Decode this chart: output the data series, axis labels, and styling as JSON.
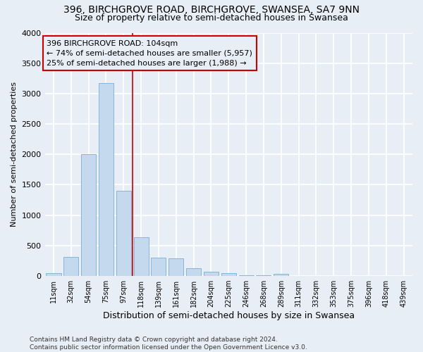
{
  "title1": "396, BIRCHGROVE ROAD, BIRCHGROVE, SWANSEA, SA7 9NN",
  "title2": "Size of property relative to semi-detached houses in Swansea",
  "xlabel": "Distribution of semi-detached houses by size in Swansea",
  "ylabel": "Number of semi-detached properties",
  "categories": [
    "11sqm",
    "32sqm",
    "54sqm",
    "75sqm",
    "97sqm",
    "118sqm",
    "139sqm",
    "161sqm",
    "182sqm",
    "204sqm",
    "225sqm",
    "246sqm",
    "268sqm",
    "289sqm",
    "311sqm",
    "332sqm",
    "353sqm",
    "375sqm",
    "396sqm",
    "418sqm",
    "439sqm"
  ],
  "values": [
    50,
    310,
    2000,
    3170,
    1400,
    640,
    300,
    295,
    130,
    70,
    42,
    16,
    10,
    38,
    4,
    2,
    1,
    1,
    1,
    1,
    1
  ],
  "bar_color": "#c5d9ee",
  "bar_edge_color": "#7aadd4",
  "vline_x_index": 4.5,
  "vline_color": "#cc0000",
  "annotation_line1": "396 BIRCHGROVE ROAD: 104sqm",
  "annotation_line2": "← 74% of semi-detached houses are smaller (5,957)",
  "annotation_line3": "25% of semi-detached houses are larger (1,988) →",
  "annotation_box_color": "#cc0000",
  "ylim": [
    0,
    4000
  ],
  "yticks": [
    0,
    500,
    1000,
    1500,
    2000,
    2500,
    3000,
    3500,
    4000
  ],
  "footnote": "Contains HM Land Registry data © Crown copyright and database right 2024.\nContains public sector information licensed under the Open Government Licence v3.0.",
  "bg_color": "#e8eef5",
  "grid_color": "#ffffff",
  "title_fontsize": 10,
  "subtitle_fontsize": 9,
  "xlabel_fontsize": 9,
  "ylabel_fontsize": 8
}
